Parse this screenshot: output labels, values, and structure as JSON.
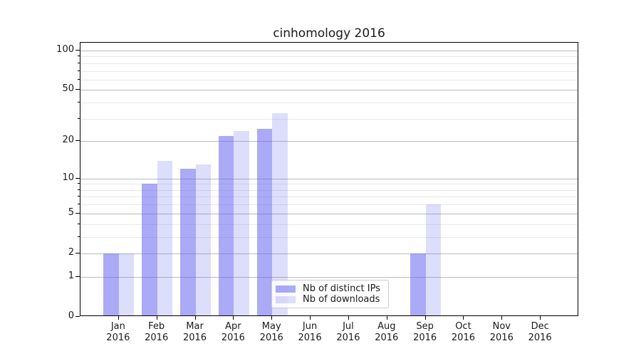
{
  "chart_data": {
    "type": "bar",
    "title": "cinhomology 2016",
    "categories": [
      "Jan",
      "Feb",
      "Mar",
      "Apr",
      "May",
      "Jun",
      "Jul",
      "Aug",
      "Sep",
      "Oct",
      "Nov",
      "Dec"
    ],
    "year": "2016",
    "series": [
      {
        "name": "Nb of distinct IPs",
        "fill": "rgba(85,85,238,0.5)",
        "values": [
          2,
          9,
          12,
          22,
          25,
          0,
          0,
          0,
          2,
          0,
          0,
          0
        ]
      },
      {
        "name": "Nb of downloads",
        "fill": "rgba(85,85,238,0.2)",
        "values": [
          2,
          14,
          13,
          24,
          33,
          0,
          0,
          0,
          6,
          0,
          0,
          0
        ]
      }
    ],
    "y_axis": {
      "scale": "log10(1+y)",
      "major_ticks": [
        0,
        1,
        2,
        5,
        10,
        20,
        50,
        100
      ],
      "minor_gridlines": [
        3,
        4,
        6,
        7,
        8,
        9,
        30,
        40,
        60,
        70,
        80,
        90
      ],
      "ylim": [
        0,
        115
      ]
    },
    "xlabel": "",
    "ylabel": "",
    "grid": true,
    "legend_position": "bottom-center"
  },
  "colors": {
    "bar_base": "#5555ee",
    "distinct_ips_composite": "#aaaaf6",
    "downloads_composite": "#ddddfc",
    "grid_major": "#bcbcbc",
    "grid_minor": "#e9e9e9",
    "axis": "#000000",
    "text": "#1a1a1a",
    "legend_border": "#cccccc"
  }
}
